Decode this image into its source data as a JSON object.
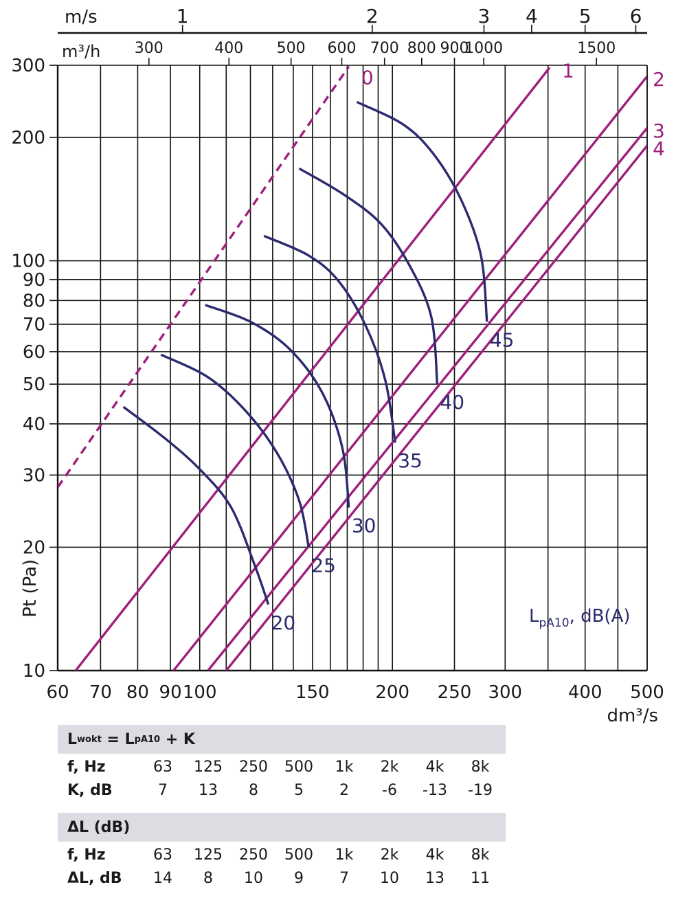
{
  "chart_data": {
    "type": "line",
    "x_scale": "log",
    "y_scale": "log",
    "xlim": [
      60,
      500
    ],
    "ylim": [
      10,
      300
    ],
    "xlabel": "dm³/s",
    "ylabel": "Pt (Pa)",
    "x_ticks": [
      60,
      70,
      80,
      90,
      100,
      150,
      200,
      250,
      300,
      400,
      500
    ],
    "y_ticks": [
      10,
      20,
      30,
      40,
      50,
      60,
      70,
      80,
      90,
      100,
      200,
      300
    ],
    "y_tick_labels": [
      "10",
      "20",
      "30",
      "40",
      "50",
      "60",
      "70",
      "80",
      "90",
      "100",
      "200",
      "300"
    ],
    "top_axis_velocity": {
      "label": "m/s",
      "ticks": [
        {
          "label": "1",
          "x": 94
        },
        {
          "label": "2",
          "x": 186
        },
        {
          "label": "3",
          "x": 278
        },
        {
          "label": "4",
          "x": 330
        },
        {
          "label": "5",
          "x": 400
        },
        {
          "label": "6",
          "x": 480
        }
      ]
    },
    "top_axis_flow": {
      "label": "m³/h",
      "ticks": [
        {
          "label": "300",
          "x": 83.3
        },
        {
          "label": "400",
          "x": 111.1
        },
        {
          "label": "500",
          "x": 138.9
        },
        {
          "label": "600",
          "x": 166.7
        },
        {
          "label": "700",
          "x": 194.4
        },
        {
          "label": "800",
          "x": 222.2
        },
        {
          "label": "900",
          "x": 250
        },
        {
          "label": "1000",
          "x": 277.8
        },
        {
          "label": "1500",
          "x": 416.7
        }
      ]
    },
    "throttle_lines": [
      {
        "name": "0",
        "dashed": true,
        "points": [
          [
            60,
            28
          ],
          [
            171,
            298
          ]
        ]
      },
      {
        "name": "1",
        "points": [
          [
            64,
            10
          ],
          [
            352,
            296
          ]
        ]
      },
      {
        "name": "2",
        "points": [
          [
            91,
            10
          ],
          [
            500,
            282
          ]
        ]
      },
      {
        "name": "3",
        "points": [
          [
            103,
            10
          ],
          [
            500,
            211
          ]
        ]
      },
      {
        "name": "4",
        "points": [
          [
            110,
            10
          ],
          [
            500,
            191
          ]
        ]
      }
    ],
    "sound_curves": [
      {
        "name": "20",
        "points": [
          [
            76,
            44
          ],
          [
            88,
            37
          ],
          [
            100,
            31
          ],
          [
            112,
            25
          ],
          [
            122,
            18
          ],
          [
            128,
            14.5
          ]
        ]
      },
      {
        "name": "25",
        "points": [
          [
            87,
            59
          ],
          [
            103,
            52
          ],
          [
            118,
            43
          ],
          [
            132,
            34
          ],
          [
            143,
            26
          ],
          [
            148,
            20
          ]
        ]
      },
      {
        "name": "30",
        "points": [
          [
            102,
            78
          ],
          [
            120,
            71
          ],
          [
            138,
            61
          ],
          [
            155,
            48
          ],
          [
            167,
            35
          ],
          [
            171,
            25
          ]
        ]
      },
      {
        "name": "35",
        "points": [
          [
            126,
            115
          ],
          [
            148,
            103
          ],
          [
            165,
            89
          ],
          [
            182,
            69
          ],
          [
            195,
            51
          ],
          [
            202,
            36
          ]
        ]
      },
      {
        "name": "40",
        "points": [
          [
            143,
            168
          ],
          [
            168,
            145
          ],
          [
            192,
            123
          ],
          [
            213,
            97
          ],
          [
            230,
            73
          ],
          [
            235,
            50
          ]
        ]
      },
      {
        "name": "45",
        "points": [
          [
            176,
            244
          ],
          [
            208,
            215
          ],
          [
            232,
            182
          ],
          [
            256,
            141
          ],
          [
            275,
            103
          ],
          [
            281,
            71
          ]
        ]
      }
    ],
    "curve_label_note": "LpA10, dB(A)"
  },
  "annotation": {
    "main": "L",
    "sub": "pA10",
    "rest": ", dB(A)"
  },
  "table1": {
    "header_main": "L",
    "header_sub": "wokt",
    "header_eq": " = L",
    "header_sub2": "pA10",
    "header_rest": " + K",
    "row1_label": "f, Hz",
    "row1_values": [
      "63",
      "125",
      "250",
      "500",
      "1k",
      "2k",
      "4k",
      "8k"
    ],
    "row2_label": "K, dB",
    "row2_values": [
      "7",
      "13",
      "8",
      "5",
      "2",
      "-6",
      "-13",
      "-19"
    ]
  },
  "table2": {
    "header": "ΔL (dB)",
    "row1_label": "f, Hz",
    "row1_values": [
      "63",
      "125",
      "250",
      "500",
      "1k",
      "2k",
      "4k",
      "8k"
    ],
    "row2_label": "ΔL, dB",
    "row2_values": [
      "14",
      "8",
      "10",
      "9",
      "7",
      "10",
      "13",
      "11"
    ]
  },
  "colors": {
    "throttle": "#9e1f7a",
    "sound": "#2a2a6e",
    "grid": "#111111",
    "table_header_bg": "#dcdde3"
  }
}
